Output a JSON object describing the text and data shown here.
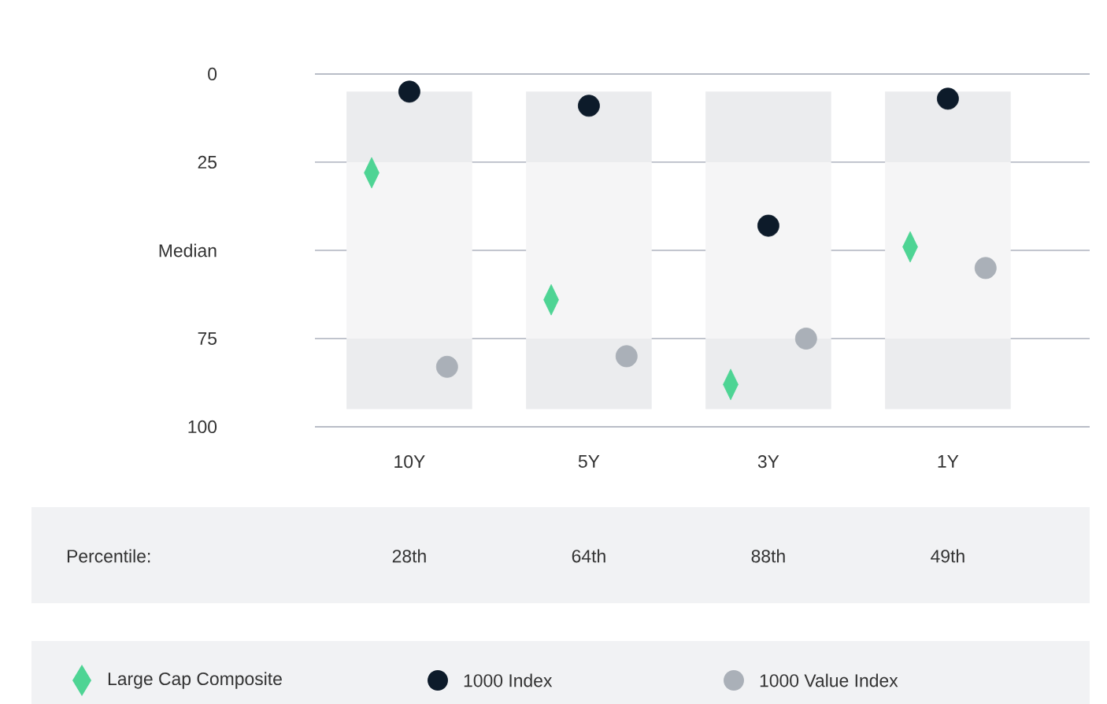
{
  "chart_data": {
    "type": "bar",
    "categories": [
      "10Y",
      "5Y",
      "3Y",
      "1Y"
    ],
    "ylim": [
      100,
      0
    ],
    "yticks": [
      0,
      25,
      {
        "value": 50,
        "label": "Median"
      },
      75,
      100
    ],
    "grid": "y",
    "legend": "bottom",
    "annotations": [
      "Percentile:"
    ],
    "series": [
      {
        "color": "#ebecee",
        "base": [
          5,
          5,
          5,
          5
        ],
        "values": [
          20,
          20,
          20,
          20
        ]
      },
      {
        "color": "#f5f5f6",
        "base": [
          25,
          25,
          25,
          25
        ],
        "values": [
          50,
          50,
          50,
          50
        ]
      },
      {
        "color": "#ebecee",
        "base": [
          75,
          75,
          75,
          75
        ],
        "values": [
          20,
          20,
          20,
          20
        ]
      },
      {
        "type": "scatter",
        "name": "Large Cap Composite",
        "color": "#4ed494",
        "marker": "diamond",
        "x": [
          "10Y",
          "5Y",
          "3Y",
          "1Y"
        ],
        "values": [
          28,
          64,
          88,
          49
        ],
        "value_labels": [
          "28th",
          "64th",
          "88th",
          "49th"
        ]
      },
      {
        "type": "scatter",
        "name": "1000 Index",
        "color": "#0d1b2a",
        "marker": "circle",
        "x": [
          "10Y",
          "5Y",
          "3Y",
          "1Y"
        ],
        "values": [
          5,
          9,
          43,
          7
        ]
      },
      {
        "type": "scatter",
        "name": "1000 Value Index",
        "color": "#aab0b8",
        "marker": "circle",
        "x": [
          "10Y",
          "5Y",
          "3Y",
          "1Y"
        ],
        "values": [
          83,
          80,
          75,
          55
        ]
      }
    ]
  }
}
